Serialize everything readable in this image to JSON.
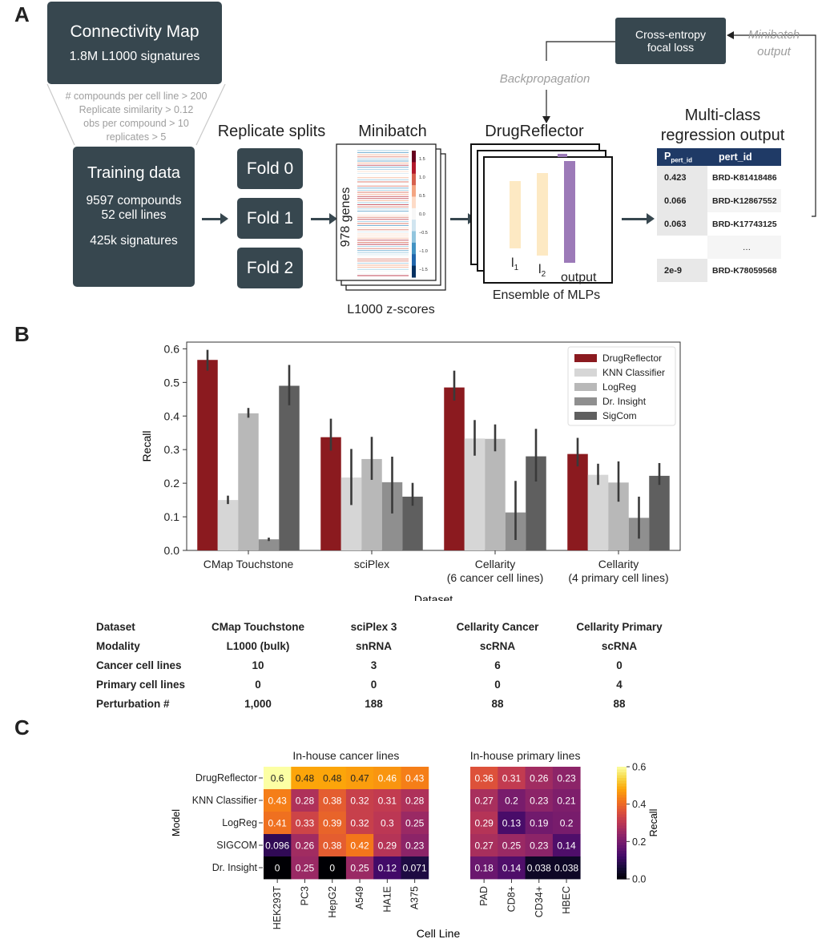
{
  "panel_a": {
    "letter": "A",
    "cmap": {
      "title": "Connectivity Map",
      "subtitle": "1.8M L1000 signatures"
    },
    "filters": [
      "# compounds per cell line > 200",
      "Replicate similarity > 0.12",
      "obs per compound > 10",
      "replicates > 5"
    ],
    "training": {
      "title": "Training data",
      "line1": "9597 compounds",
      "line2": "52 cell lines",
      "line3": "425k signatures"
    },
    "replicate_splits": {
      "title": "Replicate splits",
      "folds": [
        "Fold 0",
        "Fold 1",
        "Fold 2"
      ]
    },
    "minibatch": {
      "title": "Minibatch",
      "genes_label": "978 genes",
      "caption": "L1000 z-scores",
      "colorbar_ticks": [
        "1.5",
        "1.0",
        "0.5",
        "0.0",
        "−0.5",
        "−1.0",
        "−1.5"
      ]
    },
    "drugreflector": {
      "title": "DrugReflector",
      "caption": "Ensemble of MLPs",
      "l1": "l",
      "l1_sub": "1",
      "l2": "l",
      "l2_sub": "2",
      "output": "output",
      "colors": {
        "hidden": "#fde9c3",
        "output": "#9c7ab8"
      }
    },
    "loss": {
      "line1": "Cross-entropy",
      "line2": "focal loss"
    },
    "backprop": "Backpropagation",
    "minibatch_output": {
      "line1": "Minibatch",
      "line2": "output"
    },
    "regression": {
      "title_line1": "Multi-class",
      "title_line2": "regression output",
      "header_p": "P",
      "header_p_sub": "pert_id",
      "header_id": "pert_id",
      "rows": [
        {
          "p": "0.423",
          "id": "BRD-K81418486"
        },
        {
          "p": "0.066",
          "id": "BRD-K12867552"
        },
        {
          "p": "0.063",
          "id": "BRD-K17743125"
        },
        {
          "p": "",
          "id": "…"
        },
        {
          "p": "2e-9",
          "id": "BRD-K78059568"
        }
      ]
    }
  },
  "panel_b": {
    "letter": "B",
    "meta_table": {
      "row_labels": [
        "Dataset",
        "Modality",
        "Cancer cell lines",
        "Primary cell lines",
        "Perturbation #"
      ],
      "columns": [
        [
          "CMap Touchstone",
          "L1000 (bulk)",
          "10",
          "0",
          "1,000"
        ],
        [
          "sciPlex 3",
          "snRNA",
          "3",
          "0",
          "188"
        ],
        [
          "Cellarity Cancer",
          "scRNA",
          "6",
          "0",
          "88"
        ],
        [
          "Cellarity Primary",
          "scRNA",
          "0",
          "4",
          "88"
        ]
      ]
    }
  },
  "panel_c": {
    "letter": "C"
  },
  "chart_data": [
    {
      "type": "bar",
      "title": "",
      "xlabel": "Dataset",
      "ylabel": "Recall",
      "ylim": [
        0,
        0.62
      ],
      "yticks": [
        "0.0",
        "0.1",
        "0.2",
        "0.3",
        "0.4",
        "0.5",
        "0.6"
      ],
      "categories": [
        "CMap Touchstone",
        "sciPlex",
        "Cellarity\n(6 cancer cell lines)",
        "Cellarity\n(4 primary cell lines)"
      ],
      "legend_position": "top-right",
      "series": [
        {
          "name": "DrugReflector",
          "color": "#8b1a1f",
          "values": [
            0.567,
            0.337,
            0.485,
            0.287
          ],
          "err": [
            [
              0.535,
              0.597
            ],
            [
              0.297,
              0.392
            ],
            [
              0.446,
              0.535
            ],
            [
              0.25,
              0.335
            ]
          ]
        },
        {
          "name": "KNN Classifier",
          "color": "#d6d6d6",
          "values": [
            0.15,
            0.217,
            0.333,
            0.225
          ],
          "err": [
            [
              0.138,
              0.163
            ],
            [
              0.135,
              0.302
            ],
            [
              0.282,
              0.388
            ],
            [
              0.195,
              0.258
            ]
          ]
        },
        {
          "name": "LogReg",
          "color": "#b8b8b8",
          "values": [
            0.408,
            0.272,
            0.332,
            0.202
          ],
          "err": [
            [
              0.395,
              0.424
            ],
            [
              0.21,
              0.338
            ],
            [
              0.295,
              0.375
            ],
            [
              0.145,
              0.265
            ]
          ]
        },
        {
          "name": "Dr. Insight",
          "color": "#8f8f8f",
          "values": [
            0.033,
            0.203,
            0.113,
            0.097
          ],
          "err": [
            [
              0.028,
              0.038
            ],
            [
              0.11,
              0.279
            ],
            [
              0.031,
              0.207
            ],
            [
              0.035,
              0.16
            ]
          ]
        },
        {
          "name": "SigCom",
          "color": "#5f5f5f",
          "values": [
            0.49,
            0.16,
            0.28,
            0.222
          ],
          "err": [
            [
              0.432,
              0.552
            ],
            [
              0.133,
              0.201
            ],
            [
              0.205,
              0.362
            ],
            [
              0.195,
              0.26
            ]
          ]
        }
      ]
    },
    {
      "type": "heatmap",
      "xlabel": "Cell Line",
      "ylabel": "Model",
      "colorbar_label": "Recall",
      "colorbar_ticks": [
        "0.0",
        "0.2",
        "0.4",
        "0.6"
      ],
      "vmin": 0,
      "vmax": 0.6,
      "models": [
        "DrugReflector",
        "KNN Classifier",
        "LogReg",
        "SIGCOM",
        "Dr. Insight"
      ],
      "groups": [
        {
          "title": "In-house cancer lines",
          "cell_lines": [
            "HEK293T",
            "PC3",
            "HepG2",
            "A549",
            "HA1E",
            "A375"
          ],
          "values": [
            [
              0.6,
              0.48,
              0.48,
              0.47,
              0.46,
              0.43
            ],
            [
              0.43,
              0.28,
              0.38,
              0.32,
              0.31,
              0.28
            ],
            [
              0.41,
              0.33,
              0.39,
              0.32,
              0.3,
              0.25
            ],
            [
              0.096,
              0.26,
              0.38,
              0.42,
              0.29,
              0.23
            ],
            [
              0,
              0.25,
              0,
              0.25,
              0.12,
              0.071
            ]
          ]
        },
        {
          "title": "In-house primary lines",
          "cell_lines": [
            "PAD",
            "CD8+",
            "CD34+",
            "HBEC"
          ],
          "values": [
            [
              0.36,
              0.31,
              0.26,
              0.23
            ],
            [
              0.27,
              0.2,
              0.23,
              0.21
            ],
            [
              0.29,
              0.13,
              0.19,
              0.2
            ],
            [
              0.27,
              0.25,
              0.23,
              0.14
            ],
            [
              0.18,
              0.14,
              0.038,
              0.038
            ]
          ]
        }
      ]
    }
  ]
}
